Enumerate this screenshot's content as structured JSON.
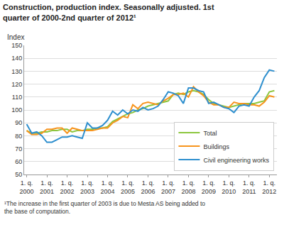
{
  "chart_data": {
    "type": "line",
    "title": "Construction, production index. Seasonally adjusted. 1st quarter of 2000-2nd quarter of 2012¹",
    "y_label": "Index",
    "footnote": "¹The increase in the first quarter of 2003 is due to Mesta AS being added to the base of computation.",
    "categories": [
      "1. q. 2000",
      null,
      null,
      null,
      "1. q. 2001",
      null,
      null,
      null,
      "1. q. 2002",
      null,
      null,
      null,
      "1. q. 2003",
      null,
      null,
      null,
      "1. q. 2004",
      null,
      null,
      null,
      "1. q. 2005",
      null,
      null,
      null,
      "1. q. 2006",
      null,
      null,
      null,
      "1. q. 2007",
      null,
      null,
      null,
      "1. q. 2008",
      null,
      null,
      null,
      "1. q. 2009",
      null,
      null,
      null,
      "1. q. 2010",
      null,
      null,
      null,
      "1. q. 2011",
      null,
      null,
      null,
      "1. q. 2012",
      null
    ],
    "series": [
      {
        "name": "Total",
        "color": "#8cc63e",
        "values": [
          84,
          82,
          82,
          83,
          83,
          84,
          84,
          85,
          85,
          83,
          84,
          84,
          85,
          85,
          86,
          86,
          87,
          91,
          93,
          95,
          97,
          98,
          100,
          101,
          103,
          104,
          105,
          106,
          107,
          112,
          113,
          112,
          114,
          115,
          114,
          112,
          108,
          105,
          104,
          103,
          102,
          103,
          104,
          105,
          105,
          105,
          106,
          107,
          114,
          115
        ]
      },
      {
        "name": "Buildings",
        "color": "#f7941d",
        "values": [
          84,
          81,
          81,
          82,
          85,
          85,
          86,
          86,
          82,
          86,
          85,
          84,
          84,
          84,
          85,
          86,
          86,
          90,
          92,
          95,
          94,
          104,
          101,
          105,
          106,
          105,
          104,
          107,
          109,
          112,
          112,
          113,
          110,
          118,
          114,
          111,
          106,
          104,
          104,
          102,
          102,
          106,
          105,
          105,
          104,
          104,
          103,
          106,
          111,
          110
        ]
      },
      {
        "name": "Civil engineering works",
        "color": "#2e8fce",
        "values": [
          89,
          82,
          83,
          80,
          75,
          75,
          77,
          79,
          79,
          80,
          79,
          78,
          90,
          86,
          86,
          88,
          92,
          99,
          96,
          100,
          97,
          100,
          99,
          102,
          100,
          101,
          103,
          108,
          114,
          113,
          111,
          105,
          117,
          117,
          115,
          114,
          105,
          106,
          104,
          102,
          101,
          98,
          103,
          104,
          103,
          110,
          115,
          125,
          131,
          130
        ]
      }
    ],
    "ylim": [
      50,
      150
    ],
    "yticks": [
      50,
      60,
      70,
      80,
      90,
      100,
      110,
      120,
      130,
      140,
      150
    ],
    "grid": true,
    "legend": "lower right"
  }
}
